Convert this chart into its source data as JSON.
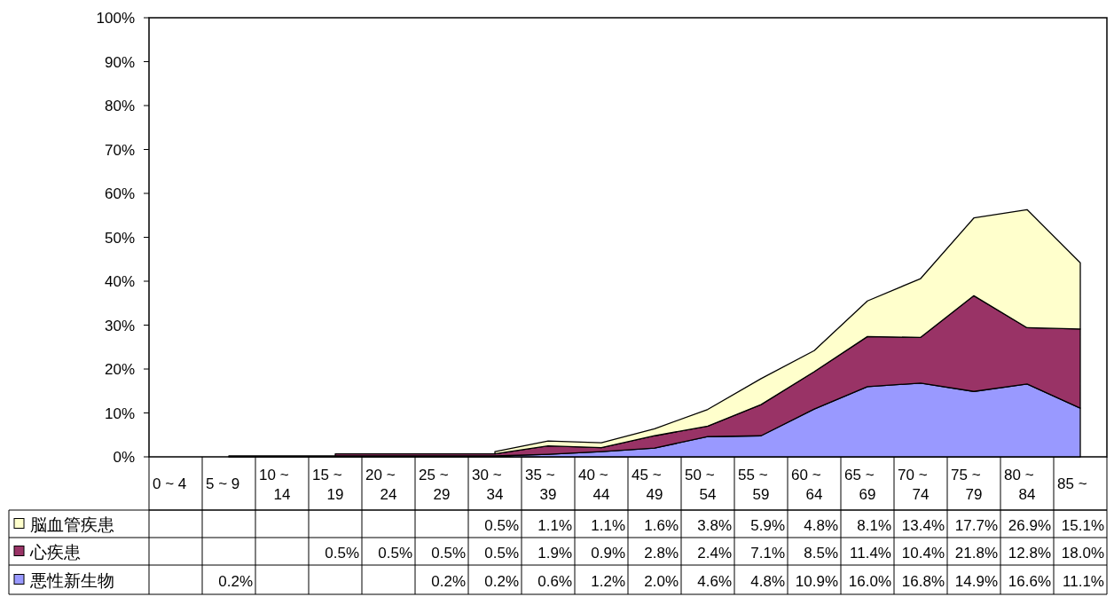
{
  "chart_data": {
    "type": "area",
    "stacked": true,
    "legend": "bottom",
    "categories": [
      "0 ~ 4",
      "5 ~ 9",
      "10 ~ 14",
      "15 ~ 19",
      "20 ~ 24",
      "25 ~ 29",
      "30 ~ 34",
      "35 ~ 39",
      "40 ~ 44",
      "45 ~ 49",
      "50 ~ 54",
      "55 ~ 59",
      "60 ~ 64",
      "65 ~ 69",
      "70 ~ 74",
      "75 ~ 79",
      "80 ~ 84",
      "85 ~"
    ],
    "ylim": [
      0,
      100
    ],
    "yticks": [
      {
        "value": 0,
        "label": "0%"
      },
      {
        "value": 10,
        "label": "10%"
      },
      {
        "value": 20,
        "label": "20%"
      },
      {
        "value": 30,
        "label": "30%"
      },
      {
        "value": 40,
        "label": "40%"
      },
      {
        "value": 50,
        "label": "50%"
      },
      {
        "value": 60,
        "label": "60%"
      },
      {
        "value": 70,
        "label": "70%"
      },
      {
        "value": 80,
        "label": "80%"
      },
      {
        "value": 90,
        "label": "90%"
      },
      {
        "value": 100,
        "label": "100%"
      }
    ],
    "series": [
      {
        "name": "悪性新生物",
        "color": "#9999ff",
        "values": [
          null,
          0.2,
          null,
          null,
          null,
          0.2,
          0.2,
          0.6,
          1.2,
          2.0,
          4.6,
          4.8,
          10.9,
          16.0,
          16.8,
          14.9,
          16.6,
          11.1
        ],
        "value_labels": [
          null,
          "0.2%",
          null,
          null,
          null,
          "0.2%",
          "0.2%",
          "0.6%",
          "1.2%",
          "2.0%",
          "4.6%",
          "4.8%",
          "10.9%",
          "16.0%",
          "16.8%",
          "14.9%",
          "16.6%",
          "11.1%"
        ]
      },
      {
        "name": "心疾患",
        "color": "#993366",
        "values": [
          null,
          null,
          null,
          0.5,
          0.5,
          0.5,
          0.5,
          1.9,
          0.9,
          2.8,
          2.4,
          7.1,
          8.5,
          11.4,
          10.4,
          21.8,
          12.8,
          18.0
        ],
        "value_labels": [
          null,
          null,
          null,
          "0.5%",
          "0.5%",
          "0.5%",
          "0.5%",
          "1.9%",
          "0.9%",
          "2.8%",
          "2.4%",
          "7.1%",
          "8.5%",
          "11.4%",
          "10.4%",
          "21.8%",
          "12.8%",
          "18.0%"
        ]
      },
      {
        "name": "脳血管疾患",
        "color": "#ffffcc",
        "values": [
          null,
          null,
          null,
          null,
          null,
          null,
          0.5,
          1.1,
          1.1,
          1.6,
          3.8,
          5.9,
          4.8,
          8.1,
          13.4,
          17.7,
          26.9,
          15.1
        ],
        "value_labels": [
          null,
          null,
          null,
          null,
          null,
          null,
          "0.5%",
          "1.1%",
          "1.1%",
          "1.6%",
          "3.8%",
          "5.9%",
          "4.8%",
          "8.1%",
          "13.4%",
          "17.7%",
          "26.9%",
          "15.1%"
        ]
      }
    ]
  }
}
